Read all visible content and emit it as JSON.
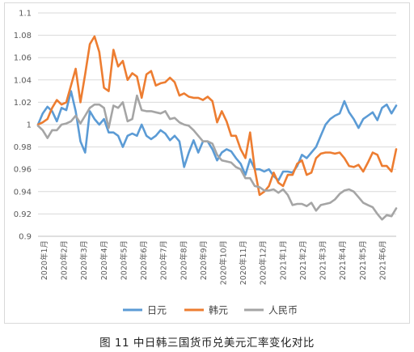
{
  "caption": "图 11 中日韩三国货币兑美元汇率变化对比",
  "chart_data": {
    "type": "line",
    "title": "",
    "xlabel": "",
    "ylabel": "",
    "ylim": [
      0.9,
      1.1
    ],
    "yticks": [
      "1.1",
      "1.08",
      "1.06",
      "1.04",
      "1.02",
      "1",
      "0.98",
      "0.96",
      "0.94",
      "0.92",
      "0.9"
    ],
    "ytick_values": [
      1.1,
      1.08,
      1.06,
      1.04,
      1.02,
      1.0,
      0.98,
      0.96,
      0.94,
      0.92,
      0.9
    ],
    "x_tick_labels": [
      "2020年1月",
      "2020年2月",
      "2020年3月",
      "2020年4月",
      "2020年5月",
      "2020年6月",
      "2020年7月",
      "2020年8月",
      "2020年9月",
      "2020年10月",
      "2020年11月",
      "2020年12月",
      "2021年1月",
      "2021年2月",
      "2021年3月",
      "2021年4月",
      "2021年5月",
      "2021年6月"
    ],
    "grid": "horizontal",
    "legend_position": "bottom",
    "series": [
      {
        "name": "日元",
        "color": "#5b9bd5",
        "values": [
          1.0,
          1.01,
          1.016,
          1.012,
          1.003,
          1.015,
          1.013,
          1.03,
          1.012,
          0.985,
          0.975,
          1.012,
          1.005,
          1.0,
          1.005,
          0.993,
          0.993,
          0.99,
          0.98,
          0.99,
          0.992,
          0.99,
          1.0,
          0.99,
          0.987,
          0.99,
          0.995,
          0.992,
          0.986,
          0.99,
          0.985,
          0.962,
          0.975,
          0.986,
          0.975,
          0.985,
          0.985,
          0.978,
          0.968,
          0.975,
          0.978,
          0.976,
          0.97,
          0.965,
          0.955,
          0.969,
          0.96,
          0.96,
          0.958,
          0.96,
          0.954,
          0.95,
          0.958,
          0.958,
          0.957,
          0.963,
          0.973,
          0.97,
          0.975,
          0.98,
          0.99,
          1.0,
          1.005,
          1.008,
          1.01,
          1.021,
          1.011,
          1.005,
          0.997,
          1.005,
          1.008,
          1.011,
          1.004,
          1.015,
          1.018,
          1.01,
          1.017
        ]
      },
      {
        "name": "韩元",
        "color": "#ed7d31",
        "values": [
          1.0,
          1.002,
          1.005,
          1.015,
          1.022,
          1.018,
          1.02,
          1.035,
          1.05,
          1.02,
          1.045,
          1.072,
          1.079,
          1.065,
          1.033,
          1.03,
          1.067,
          1.052,
          1.057,
          1.04,
          1.046,
          1.043,
          1.024,
          1.045,
          1.048,
          1.035,
          1.037,
          1.038,
          1.042,
          1.038,
          1.026,
          1.028,
          1.025,
          1.024,
          1.024,
          1.022,
          1.025,
          1.021,
          1.002,
          1.012,
          1.003,
          0.99,
          0.99,
          0.978,
          0.97,
          0.993,
          0.96,
          0.937,
          0.94,
          0.945,
          0.957,
          0.948,
          0.945,
          0.955,
          0.955,
          0.965,
          0.968,
          0.955,
          0.957,
          0.97,
          0.974,
          0.975,
          0.975,
          0.974,
          0.975,
          0.97,
          0.963,
          0.962,
          0.964,
          0.958,
          0.966,
          0.975,
          0.973,
          0.963,
          0.963,
          0.958,
          0.978
        ]
      },
      {
        "name": "人民币",
        "color": "#a5a5a5",
        "values": [
          0.999,
          0.995,
          0.988,
          0.995,
          0.995,
          1.0,
          1.001,
          1.003,
          1.008,
          1.001,
          1.008,
          1.015,
          1.018,
          1.018,
          1.015,
          0.997,
          1.017,
          1.015,
          1.02,
          1.003,
          1.005,
          1.026,
          1.013,
          1.012,
          1.012,
          1.011,
          1.01,
          1.012,
          1.005,
          1.006,
          1.002,
          1.0,
          0.999,
          0.995,
          0.99,
          0.985,
          0.985,
          0.983,
          0.973,
          0.968,
          0.967,
          0.966,
          0.962,
          0.96,
          0.952,
          0.952,
          0.945,
          0.944,
          0.941,
          0.941,
          0.942,
          0.939,
          0.942,
          0.937,
          0.928,
          0.929,
          0.929,
          0.927,
          0.93,
          0.923,
          0.928,
          0.929,
          0.93,
          0.933,
          0.938,
          0.941,
          0.942,
          0.94,
          0.935,
          0.93,
          0.928,
          0.926,
          0.92,
          0.915,
          0.919,
          0.918,
          0.925
        ]
      }
    ]
  }
}
